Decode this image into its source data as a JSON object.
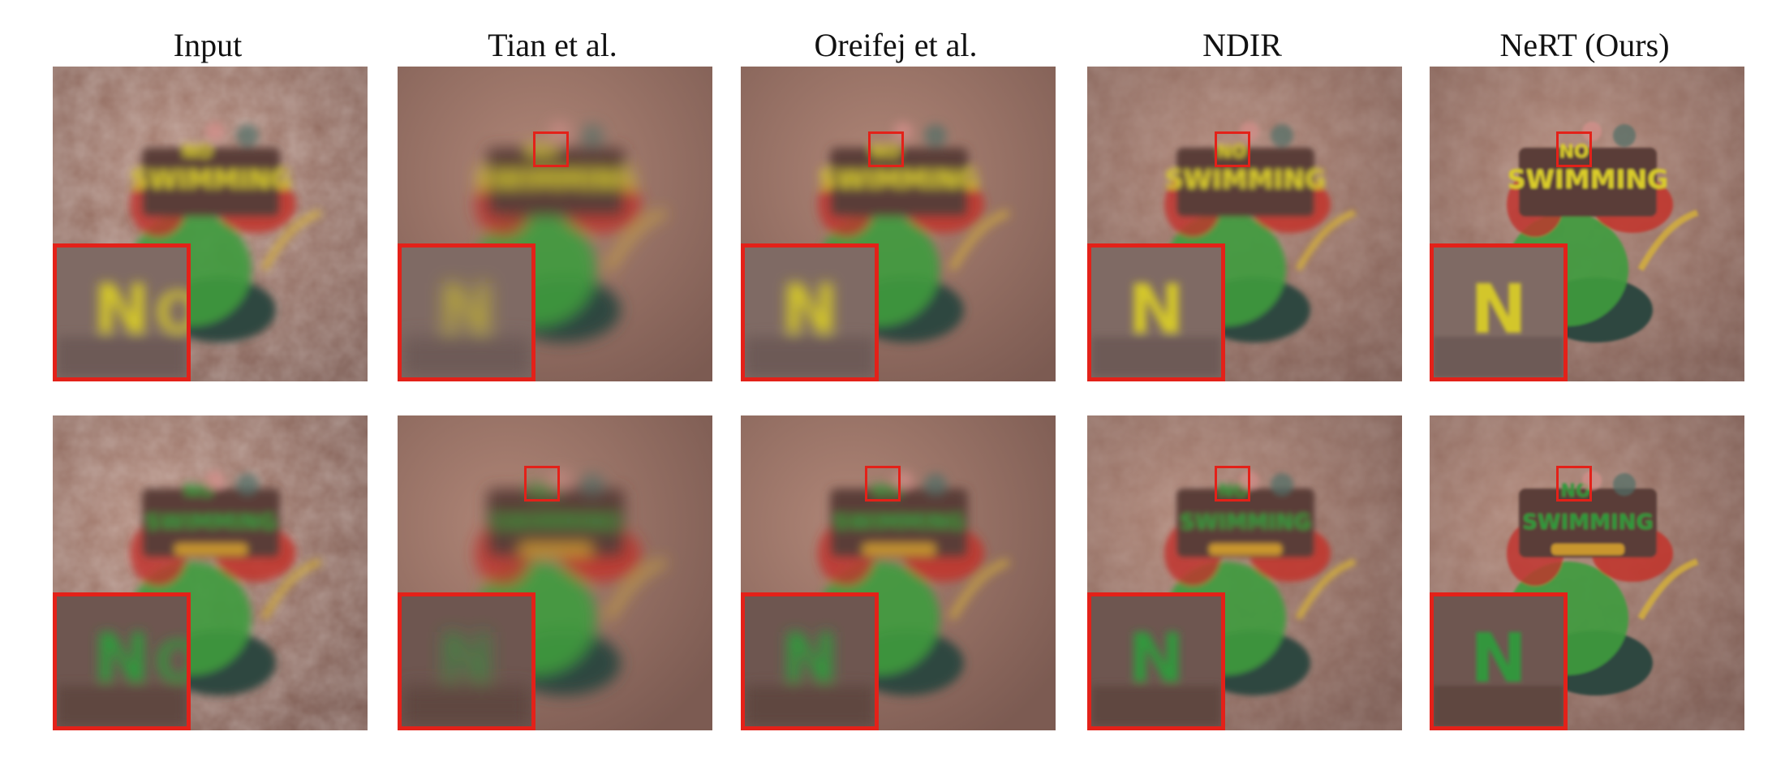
{
  "columns": [
    {
      "key": "input",
      "title": "Input",
      "quality": 0
    },
    {
      "key": "tian",
      "title": "Tian et al.",
      "quality": 1
    },
    {
      "key": "oreifej",
      "title": "Oreifej et al.",
      "quality": 2
    },
    {
      "key": "ndir",
      "title": "NDIR",
      "quality": 3
    },
    {
      "key": "nert",
      "title": "NeRT (Ours)",
      "quality": 4
    }
  ],
  "rows": [
    {
      "scene": "no-swimming-sign-1",
      "inset_color": "#d9cc2a"
    },
    {
      "scene": "no-swimming-sign-2",
      "inset_color": "#2f9a3b"
    }
  ],
  "colors": {
    "background_warm": "#b08677",
    "background_dark": "#7c5b52",
    "sign_yellow": "#d9cc2a",
    "sign_green": "#2f9a3b",
    "foliage_red": "#c2312c",
    "foliage_green": "#3e9b3d",
    "rock": "#2f4640",
    "highlight_box": "#e32119"
  }
}
